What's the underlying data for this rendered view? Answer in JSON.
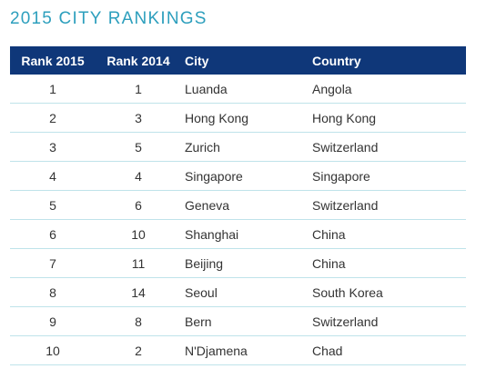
{
  "title": "2015 CITY RANKINGS",
  "table": {
    "headers": {
      "rank2015": "Rank 2015",
      "rank2014": "Rank 2014",
      "city": "City",
      "country": "Country"
    },
    "rows": [
      {
        "rank2015": "1",
        "rank2014": "1",
        "city": "Luanda",
        "country": "Angola"
      },
      {
        "rank2015": "2",
        "rank2014": "3",
        "city": "Hong Kong",
        "country": "Hong Kong"
      },
      {
        "rank2015": "3",
        "rank2014": "5",
        "city": "Zurich",
        "country": "Switzerland"
      },
      {
        "rank2015": "4",
        "rank2014": "4",
        "city": "Singapore",
        "country": "Singapore"
      },
      {
        "rank2015": "5",
        "rank2014": "6",
        "city": "Geneva",
        "country": "Switzerland"
      },
      {
        "rank2015": "6",
        "rank2014": "10",
        "city": "Shanghai",
        "country": "China"
      },
      {
        "rank2015": "7",
        "rank2014": "11",
        "city": "Beijing",
        "country": "China"
      },
      {
        "rank2015": "8",
        "rank2014": "14",
        "city": "Seoul",
        "country": "South Korea"
      },
      {
        "rank2015": "9",
        "rank2014": "8",
        "city": "Bern",
        "country": "Switzerland"
      },
      {
        "rank2015": "10",
        "rank2014": "2",
        "city": "N'Djamena",
        "country": "Chad"
      }
    ]
  },
  "colors": {
    "title": "#2d9fbd",
    "header_bg": "#0f3779",
    "header_text": "#ffffff",
    "row_divider": "#bfe3ea",
    "body_text": "#333333"
  }
}
